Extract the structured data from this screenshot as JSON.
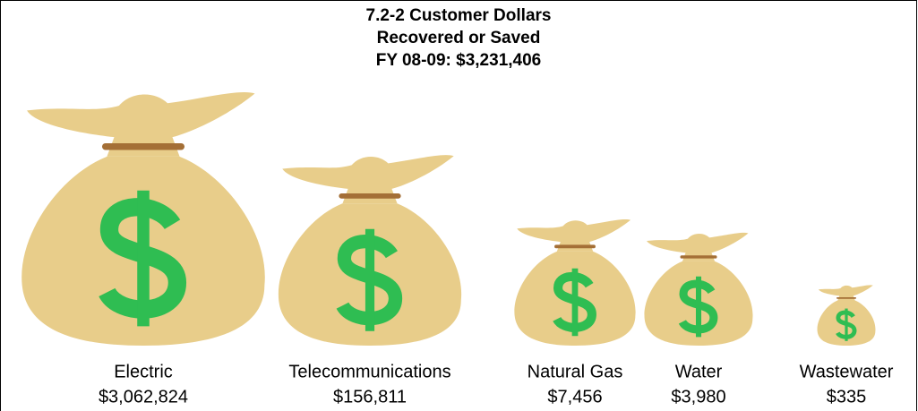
{
  "chart_data": {
    "type": "pictograph",
    "title": [
      "7.2-2 Customer Dollars",
      "Recovered or Saved"
    ],
    "subtitle": "FY 08-09: $3,231,406",
    "categories": [
      "Electric",
      "Telecommunications",
      "Natural Gas",
      "Water",
      "Wastewater"
    ],
    "values": [
      3062824,
      156811,
      7456,
      3980,
      335
    ],
    "value_labels": [
      "$3,062,824",
      "$156,811",
      "$7,456",
      "$3,980",
      "$335"
    ],
    "log_scale": true,
    "color": "#e8cd8a",
    "tie_color": "#a46f36",
    "symbol_color": "#2fbd52"
  }
}
